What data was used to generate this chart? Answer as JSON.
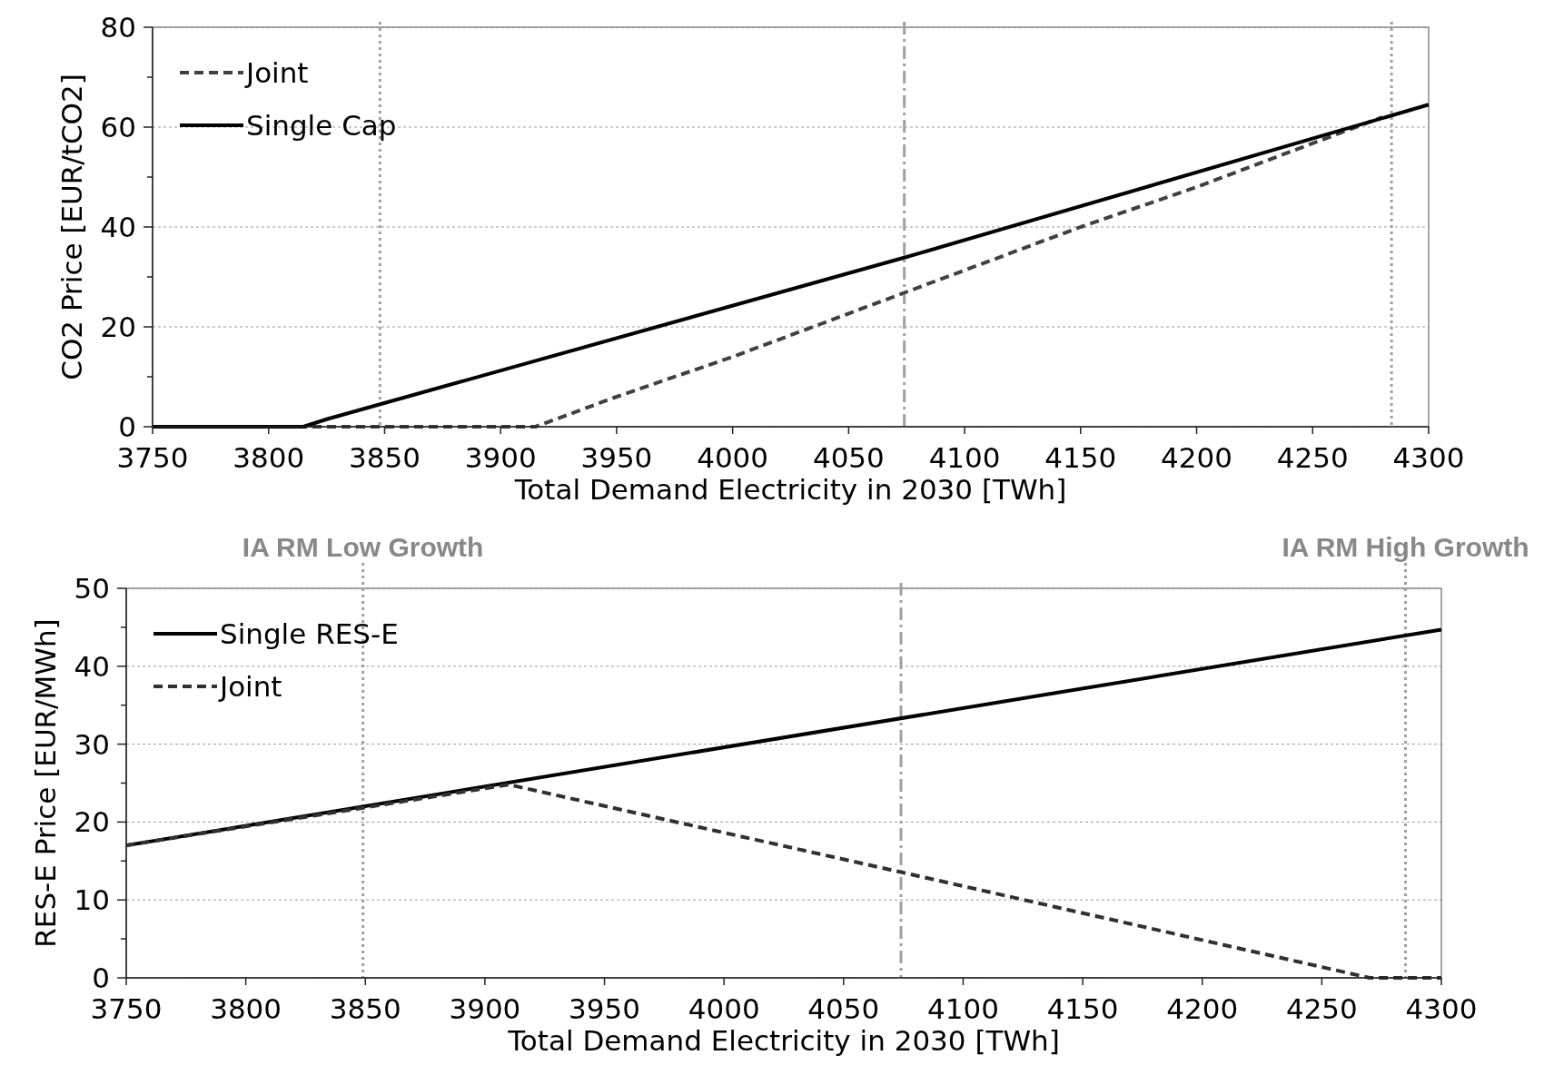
{
  "chart_data": [
    {
      "type": "line",
      "xlabel": "Total Demand Electricity in 2030 [TWh]",
      "ylabel": "CO2 Price [EUR/tCO2]",
      "xlim": [
        3750,
        4300
      ],
      "xticks": [
        3750,
        3800,
        3850,
        3900,
        3950,
        4000,
        4050,
        4100,
        4150,
        4200,
        4250,
        4300
      ],
      "ylim": [
        0,
        80
      ],
      "yticks": [
        0,
        {
          "value": 10,
          "label": null
        },
        20,
        {
          "value": 30,
          "label": null
        },
        40,
        {
          "value": 50,
          "label": null
        },
        60,
        {
          "value": 70,
          "label": null
        },
        80
      ],
      "grid": "y",
      "legend": "top left",
      "marker": "none",
      "series": [
        {
          "name": "Joint",
          "color": "#404040",
          "line_style": "dashed",
          "x": [
            3750,
            3915,
            3950,
            4000,
            4075,
            4150,
            4200,
            4280
          ],
          "values": [
            0,
            0,
            6,
            14,
            27,
            40,
            48,
            62
          ]
        },
        {
          "name": "Single Cap",
          "color": "#000000",
          "line_style": "solid",
          "x": [
            3750,
            3815,
            3825,
            4075,
            4300
          ],
          "values": [
            0,
            0,
            1.5,
            34,
            64.5
          ]
        }
      ],
      "ref_lines": [
        {
          "axis": "x",
          "value": 3848,
          "color": "#a0a0a0",
          "line_style": "dotted"
        },
        {
          "axis": "x",
          "value": 4074,
          "color": "#a0a0a0",
          "line_style": "dashdot"
        },
        {
          "axis": "x",
          "value": 4284,
          "color": "#a0a0a0",
          "line_style": "dotted"
        }
      ]
    },
    {
      "type": "line",
      "xlabel": "Total Demand Electricity in 2030 [TWh]",
      "ylabel": "RES-E Price [EUR/MWh]",
      "xlim": [
        3750,
        4300
      ],
      "xticks": [
        3750,
        3800,
        3850,
        3900,
        3950,
        4000,
        4050,
        4100,
        4150,
        4200,
        4250,
        4300
      ],
      "ylim": [
        0,
        50
      ],
      "yticks": [
        0,
        {
          "value": 5,
          "label": null
        },
        10,
        {
          "value": 15,
          "label": null
        },
        20,
        {
          "value": 25,
          "label": null
        },
        30,
        {
          "value": 35,
          "label": null
        },
        40,
        {
          "value": 45,
          "label": null
        },
        50
      ],
      "grid": "y",
      "legend": "top left",
      "marker": "none",
      "series": [
        {
          "name": "Single RES-E",
          "color": "#000000",
          "line_style": "solid",
          "x": [
            3750,
            4300
          ],
          "values": [
            17,
            44.7
          ]
        },
        {
          "name": "Joint",
          "color": "#303030",
          "line_style": "dashed",
          "x": [
            3750,
            3910,
            4075,
            4270,
            4300
          ],
          "values": [
            17,
            24.8,
            13.5,
            0,
            0
          ]
        }
      ],
      "ref_lines": [
        {
          "axis": "x",
          "value": 3849,
          "label": "IA RM Low Growth",
          "color": "#a0a0a0",
          "line_style": "dotted"
        },
        {
          "axis": "x",
          "value": 4074,
          "color": "#a0a0a0",
          "line_style": "dashdot"
        },
        {
          "axis": "x",
          "value": 4285,
          "label": "IA RM High Growth",
          "color": "#a0a0a0",
          "line_style": "dotted"
        }
      ]
    }
  ]
}
